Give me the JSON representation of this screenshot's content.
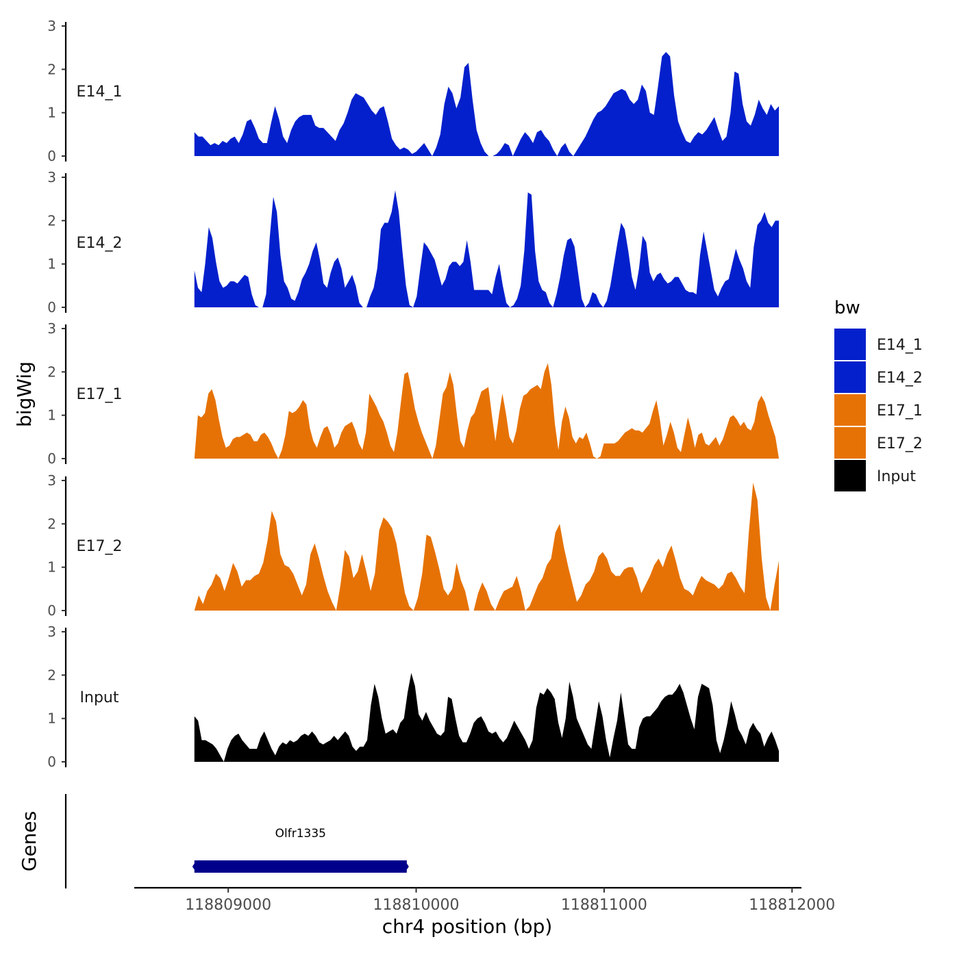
{
  "chart_data": {
    "type": "area",
    "ylabel": "bigWig",
    "xlabel": "chr4 position (bp)",
    "genes_label": "Genes",
    "xlim": [
      118808500,
      118812050
    ],
    "x_data_min": 118808820,
    "x_data_max": 118811930,
    "x_ticks": [
      118809000,
      118810000,
      118811000,
      118812000
    ],
    "x_tick_labels": [
      "118809000",
      "118810000",
      "118811000",
      "118812000"
    ],
    "ylim": [
      0,
      3
    ],
    "y_ticks": [
      0,
      1,
      2,
      3
    ],
    "y_tick_labels": [
      "0",
      "1",
      "2",
      "3"
    ],
    "legend": {
      "title": "bw",
      "entries": [
        {
          "label": "E14_1",
          "color": "#0320CC"
        },
        {
          "label": "E14_2",
          "color": "#0320CC"
        },
        {
          "label": "E17_1",
          "color": "#E67205"
        },
        {
          "label": "E17_2",
          "color": "#E67205"
        },
        {
          "label": "Input",
          "color": "#000000"
        }
      ]
    },
    "series": [
      {
        "name": "E14_1",
        "label": "E14_1",
        "color": "#0320CC",
        "values": [
          0.55,
          0.45,
          0.45,
          0.35,
          0.25,
          0.3,
          0.25,
          0.35,
          0.3,
          0.4,
          0.45,
          0.3,
          0.5,
          0.8,
          0.85,
          0.65,
          0.4,
          0.3,
          0.3,
          0.75,
          1.15,
          0.85,
          0.45,
          0.3,
          0.6,
          0.8,
          0.9,
          0.95,
          0.95,
          0.95,
          0.7,
          0.65,
          0.65,
          0.55,
          0.45,
          0.35,
          0.6,
          0.75,
          1.0,
          1.3,
          1.45,
          1.4,
          1.35,
          1.2,
          1.05,
          0.95,
          1.1,
          1.15,
          0.8,
          0.4,
          0.25,
          0.15,
          0.2,
          0.15,
          0.05,
          0.1,
          0.2,
          0.3,
          0.15,
          0.0,
          0.2,
          0.5,
          1.2,
          1.6,
          1.45,
          1.1,
          1.35,
          2.05,
          2.15,
          1.3,
          0.6,
          0.3,
          0.1,
          0.0,
          0.0,
          0.05,
          0.15,
          0.3,
          0.25,
          0.0,
          0.2,
          0.4,
          0.55,
          0.45,
          0.3,
          0.55,
          0.6,
          0.45,
          0.35,
          0.15,
          0.0,
          0.2,
          0.3,
          0.1,
          0.0,
          0.15,
          0.3,
          0.45,
          0.65,
          0.85,
          1.0,
          1.05,
          1.15,
          1.3,
          1.45,
          1.5,
          1.55,
          1.5,
          1.3,
          1.2,
          1.3,
          1.65,
          1.5,
          1.0,
          0.95,
          1.6,
          2.3,
          2.4,
          2.3,
          1.4,
          0.8,
          0.55,
          0.35,
          0.3,
          0.45,
          0.55,
          0.5,
          0.6,
          0.75,
          0.9,
          0.6,
          0.35,
          0.45,
          1.0,
          1.95,
          1.9,
          1.2,
          0.8,
          0.7,
          0.95,
          1.3,
          1.1,
          0.95,
          1.2,
          1.05,
          1.15
        ]
      },
      {
        "name": "E14_2",
        "label": "E14_2",
        "color": "#0320CC",
        "values": [
          0.85,
          0.45,
          0.35,
          1.0,
          1.85,
          1.6,
          1.05,
          0.6,
          0.45,
          0.5,
          0.6,
          0.6,
          0.55,
          0.65,
          0.75,
          0.7,
          0.3,
          0.05,
          0.0,
          0.0,
          0.3,
          1.6,
          2.55,
          2.2,
          1.2,
          0.6,
          0.45,
          0.2,
          0.15,
          0.35,
          0.65,
          0.8,
          1.0,
          1.3,
          1.5,
          1.1,
          0.55,
          0.45,
          0.8,
          1.05,
          1.15,
          0.9,
          0.45,
          0.6,
          0.75,
          0.5,
          0.1,
          0.0,
          0.0,
          0.25,
          0.45,
          0.9,
          1.8,
          1.95,
          1.95,
          2.2,
          2.7,
          2.2,
          1.3,
          0.5,
          0.05,
          0.0,
          0.25,
          0.9,
          1.5,
          1.4,
          1.25,
          1.1,
          0.8,
          0.5,
          0.65,
          0.95,
          1.05,
          1.05,
          0.95,
          1.05,
          1.55,
          1.05,
          0.4,
          0.4,
          0.4,
          0.4,
          0.4,
          0.3,
          0.7,
          1.0,
          0.5,
          0.1,
          0.0,
          0.05,
          0.2,
          0.5,
          1.3,
          2.65,
          2.6,
          1.3,
          0.6,
          0.4,
          0.35,
          0.1,
          0.0,
          0.3,
          0.7,
          1.2,
          1.55,
          1.6,
          1.4,
          0.8,
          0.2,
          0.0,
          0.1,
          0.35,
          0.3,
          0.1,
          0.0,
          0.15,
          0.5,
          1.0,
          1.5,
          1.95,
          1.8,
          1.3,
          0.7,
          0.4,
          0.9,
          1.65,
          1.5,
          0.8,
          0.6,
          0.75,
          0.8,
          0.65,
          0.55,
          0.6,
          0.7,
          0.7,
          0.55,
          0.4,
          0.35,
          0.35,
          0.3,
          1.2,
          1.75,
          1.3,
          0.85,
          0.4,
          0.25,
          0.45,
          0.6,
          0.65,
          1.0,
          1.35,
          1.1,
          0.9,
          0.6,
          0.45,
          1.4,
          1.9,
          2.0,
          2.2,
          1.95,
          1.85,
          2.0,
          2.0
        ]
      },
      {
        "name": "E17_1",
        "label": "E17_1",
        "color": "#E67205",
        "values": [
          0.0,
          1.0,
          0.95,
          1.05,
          1.5,
          1.6,
          1.35,
          0.9,
          0.5,
          0.25,
          0.3,
          0.45,
          0.5,
          0.5,
          0.55,
          0.6,
          0.55,
          0.4,
          0.4,
          0.55,
          0.6,
          0.5,
          0.35,
          0.15,
          0.0,
          0.2,
          0.55,
          1.1,
          1.05,
          1.1,
          1.2,
          1.35,
          1.25,
          0.7,
          0.4,
          0.25,
          0.5,
          0.7,
          0.75,
          0.55,
          0.25,
          0.35,
          0.6,
          0.75,
          0.8,
          0.85,
          0.65,
          0.35,
          0.2,
          0.6,
          1.5,
          1.35,
          1.2,
          1.0,
          0.85,
          0.6,
          0.3,
          0.15,
          0.6,
          1.3,
          1.95,
          2.0,
          1.6,
          1.15,
          0.85,
          0.6,
          0.4,
          0.2,
          0.0,
          0.3,
          0.9,
          1.5,
          1.65,
          2.0,
          1.7,
          1.0,
          0.4,
          0.25,
          0.65,
          0.95,
          1.05,
          1.3,
          1.55,
          1.6,
          1.65,
          1.0,
          0.4,
          1.0,
          1.5,
          1.05,
          0.5,
          0.35,
          0.65,
          1.15,
          1.45,
          1.5,
          1.6,
          1.65,
          1.7,
          1.6,
          2.0,
          2.2,
          1.7,
          0.8,
          0.2,
          0.85,
          1.2,
          0.95,
          0.5,
          0.35,
          0.5,
          0.45,
          0.6,
          0.35,
          0.05,
          0.0,
          0.05,
          0.35,
          0.35,
          0.35,
          0.35,
          0.4,
          0.5,
          0.6,
          0.65,
          0.7,
          0.65,
          0.65,
          0.6,
          0.7,
          0.8,
          1.1,
          1.35,
          0.9,
          0.3,
          0.55,
          0.85,
          0.6,
          0.25,
          0.15,
          0.55,
          0.95,
          0.65,
          0.25,
          0.55,
          0.6,
          0.35,
          0.3,
          0.4,
          0.5,
          0.3,
          0.45,
          0.7,
          0.95,
          1.0,
          0.9,
          0.75,
          0.85,
          0.7,
          0.65,
          0.85,
          1.3,
          1.45,
          1.3,
          1.0,
          0.75,
          0.5,
          0.0
        ]
      },
      {
        "name": "E17_2",
        "label": "E17_2",
        "color": "#E67205",
        "values": [
          0.0,
          0.35,
          0.15,
          0.45,
          0.6,
          0.85,
          0.75,
          0.45,
          0.75,
          1.1,
          0.9,
          0.55,
          0.7,
          0.7,
          0.8,
          0.85,
          1.1,
          1.6,
          2.3,
          2.05,
          1.3,
          1.05,
          1.0,
          0.85,
          0.6,
          0.35,
          0.6,
          1.3,
          1.55,
          1.2,
          0.8,
          0.45,
          0.2,
          0.0,
          0.6,
          1.4,
          1.25,
          0.75,
          0.9,
          1.3,
          0.9,
          0.45,
          0.85,
          1.85,
          2.15,
          2.05,
          1.9,
          1.55,
          0.95,
          0.4,
          0.1,
          0.0,
          0.3,
          0.85,
          1.75,
          1.7,
          1.35,
          0.95,
          0.5,
          0.35,
          0.5,
          1.1,
          0.7,
          0.45,
          0.0,
          0.0,
          0.4,
          0.65,
          0.45,
          0.15,
          0.0,
          0.25,
          0.45,
          0.5,
          0.55,
          0.8,
          0.45,
          0.0,
          0.1,
          0.35,
          0.6,
          0.75,
          1.05,
          1.2,
          1.8,
          2.0,
          1.45,
          1.0,
          0.6,
          0.2,
          0.35,
          0.6,
          0.7,
          0.9,
          1.25,
          1.35,
          1.2,
          0.9,
          0.8,
          0.8,
          0.95,
          1.0,
          1.0,
          0.75,
          0.4,
          0.6,
          0.8,
          1.05,
          1.2,
          1.0,
          1.3,
          1.5,
          1.15,
          0.75,
          0.5,
          0.45,
          0.35,
          0.6,
          0.8,
          0.7,
          0.65,
          0.6,
          0.5,
          0.6,
          0.85,
          0.9,
          0.75,
          0.55,
          0.4,
          1.8,
          2.95,
          2.55,
          1.2,
          0.3,
          0.0,
          0.6,
          1.15
        ]
      },
      {
        "name": "Input",
        "label": "Input",
        "color": "#000000",
        "values": [
          1.05,
          0.95,
          0.5,
          0.5,
          0.45,
          0.4,
          0.3,
          0.15,
          0.0,
          0.3,
          0.5,
          0.6,
          0.65,
          0.5,
          0.4,
          0.3,
          0.3,
          0.3,
          0.55,
          0.7,
          0.5,
          0.3,
          0.15,
          0.35,
          0.45,
          0.4,
          0.5,
          0.45,
          0.5,
          0.6,
          0.65,
          0.6,
          0.7,
          0.6,
          0.45,
          0.4,
          0.45,
          0.5,
          0.6,
          0.5,
          0.6,
          0.7,
          0.6,
          0.35,
          0.25,
          0.35,
          0.35,
          0.5,
          1.3,
          1.8,
          1.5,
          1.0,
          0.65,
          0.7,
          0.75,
          0.65,
          0.9,
          1.0,
          1.6,
          2.05,
          1.75,
          1.1,
          0.95,
          1.15,
          0.95,
          0.8,
          0.65,
          0.6,
          0.7,
          1.5,
          1.45,
          1.0,
          0.6,
          0.45,
          0.45,
          0.65,
          0.9,
          1.0,
          1.05,
          0.9,
          0.7,
          0.65,
          0.7,
          0.55,
          0.45,
          0.55,
          0.75,
          0.95,
          0.8,
          0.65,
          0.5,
          0.3,
          0.5,
          1.25,
          1.6,
          1.55,
          1.7,
          1.6,
          1.45,
          0.9,
          0.55,
          1.0,
          1.85,
          1.5,
          1.0,
          0.8,
          0.6,
          0.4,
          0.3,
          0.85,
          1.4,
          1.05,
          0.5,
          0.1,
          0.55,
          0.95,
          1.6,
          1.0,
          0.4,
          0.3,
          0.3,
          0.8,
          1.0,
          1.05,
          1.05,
          1.15,
          1.25,
          1.4,
          1.5,
          1.55,
          1.55,
          1.65,
          1.8,
          1.6,
          1.3,
          1.0,
          0.75,
          1.5,
          1.8,
          1.75,
          1.7,
          1.3,
          0.5,
          0.2,
          0.5,
          0.9,
          1.4,
          1.1,
          0.75,
          0.6,
          0.4,
          0.75,
          0.9,
          0.75,
          0.65,
          0.35,
          0.55,
          0.7,
          0.5,
          0.25
        ]
      }
    ],
    "genes": [
      {
        "name": "Olfr1335",
        "start": 118808820,
        "end": 118809950
      }
    ]
  }
}
